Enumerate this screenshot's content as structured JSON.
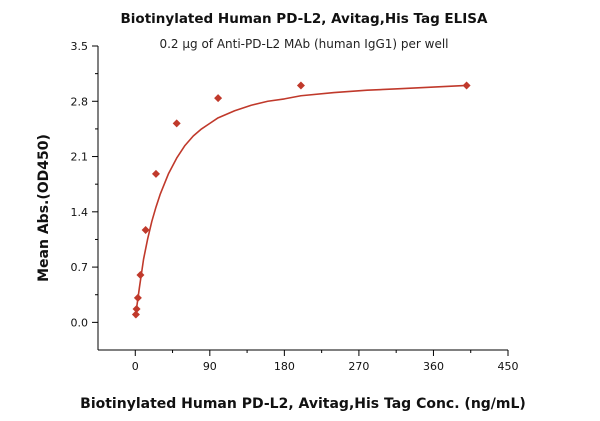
{
  "chart_data": {
    "type": "scatter",
    "title": "Biotinylated Human PD-L2, Avitag,His Tag ELISA",
    "subtitle": "0.2 μg of Anti-PD-L2 MAb (human IgG1) per well",
    "xlabel": "Biotinylated Human PD-L2, Avitag,His Tag Conc. (ng/mL)",
    "ylabel": "Mean Abs.(OD450)",
    "xlim": [
      -45,
      450
    ],
    "ylim": [
      -0.35,
      3.5
    ],
    "x_ticks": [
      0,
      90,
      180,
      270,
      360,
      450
    ],
    "y_ticks": [
      0.0,
      0.7,
      1.4,
      2.1,
      2.8,
      3.5
    ],
    "x_tick_labels": [
      "0",
      "90",
      "180",
      "270",
      "360",
      "450"
    ],
    "y_tick_labels": [
      "0.0",
      "0.7",
      "1.4",
      "2.1",
      "2.8",
      "3.5"
    ],
    "grid": false,
    "series": [
      {
        "color": "#c0392b",
        "marker": "diamond",
        "fit_line": true,
        "x": [
          0.781,
          1.563,
          3.125,
          6.25,
          12.5,
          25,
          50,
          100,
          200,
          400
        ],
        "y": [
          0.1,
          0.17,
          0.31,
          0.6,
          1.17,
          1.88,
          2.52,
          2.84,
          3.0,
          3.0
        ]
      }
    ],
    "fit_curve": {
      "x": [
        0,
        5,
        10,
        15,
        20,
        25,
        30,
        40,
        50,
        60,
        70,
        80,
        90,
        100,
        120,
        140,
        160,
        180,
        200,
        240,
        280,
        320,
        360,
        400
      ],
      "y": [
        0.06,
        0.44,
        0.8,
        1.06,
        1.28,
        1.46,
        1.62,
        1.88,
        2.08,
        2.24,
        2.36,
        2.45,
        2.52,
        2.59,
        2.68,
        2.75,
        2.8,
        2.83,
        2.87,
        2.91,
        2.94,
        2.96,
        2.98,
        3.0
      ]
    }
  }
}
